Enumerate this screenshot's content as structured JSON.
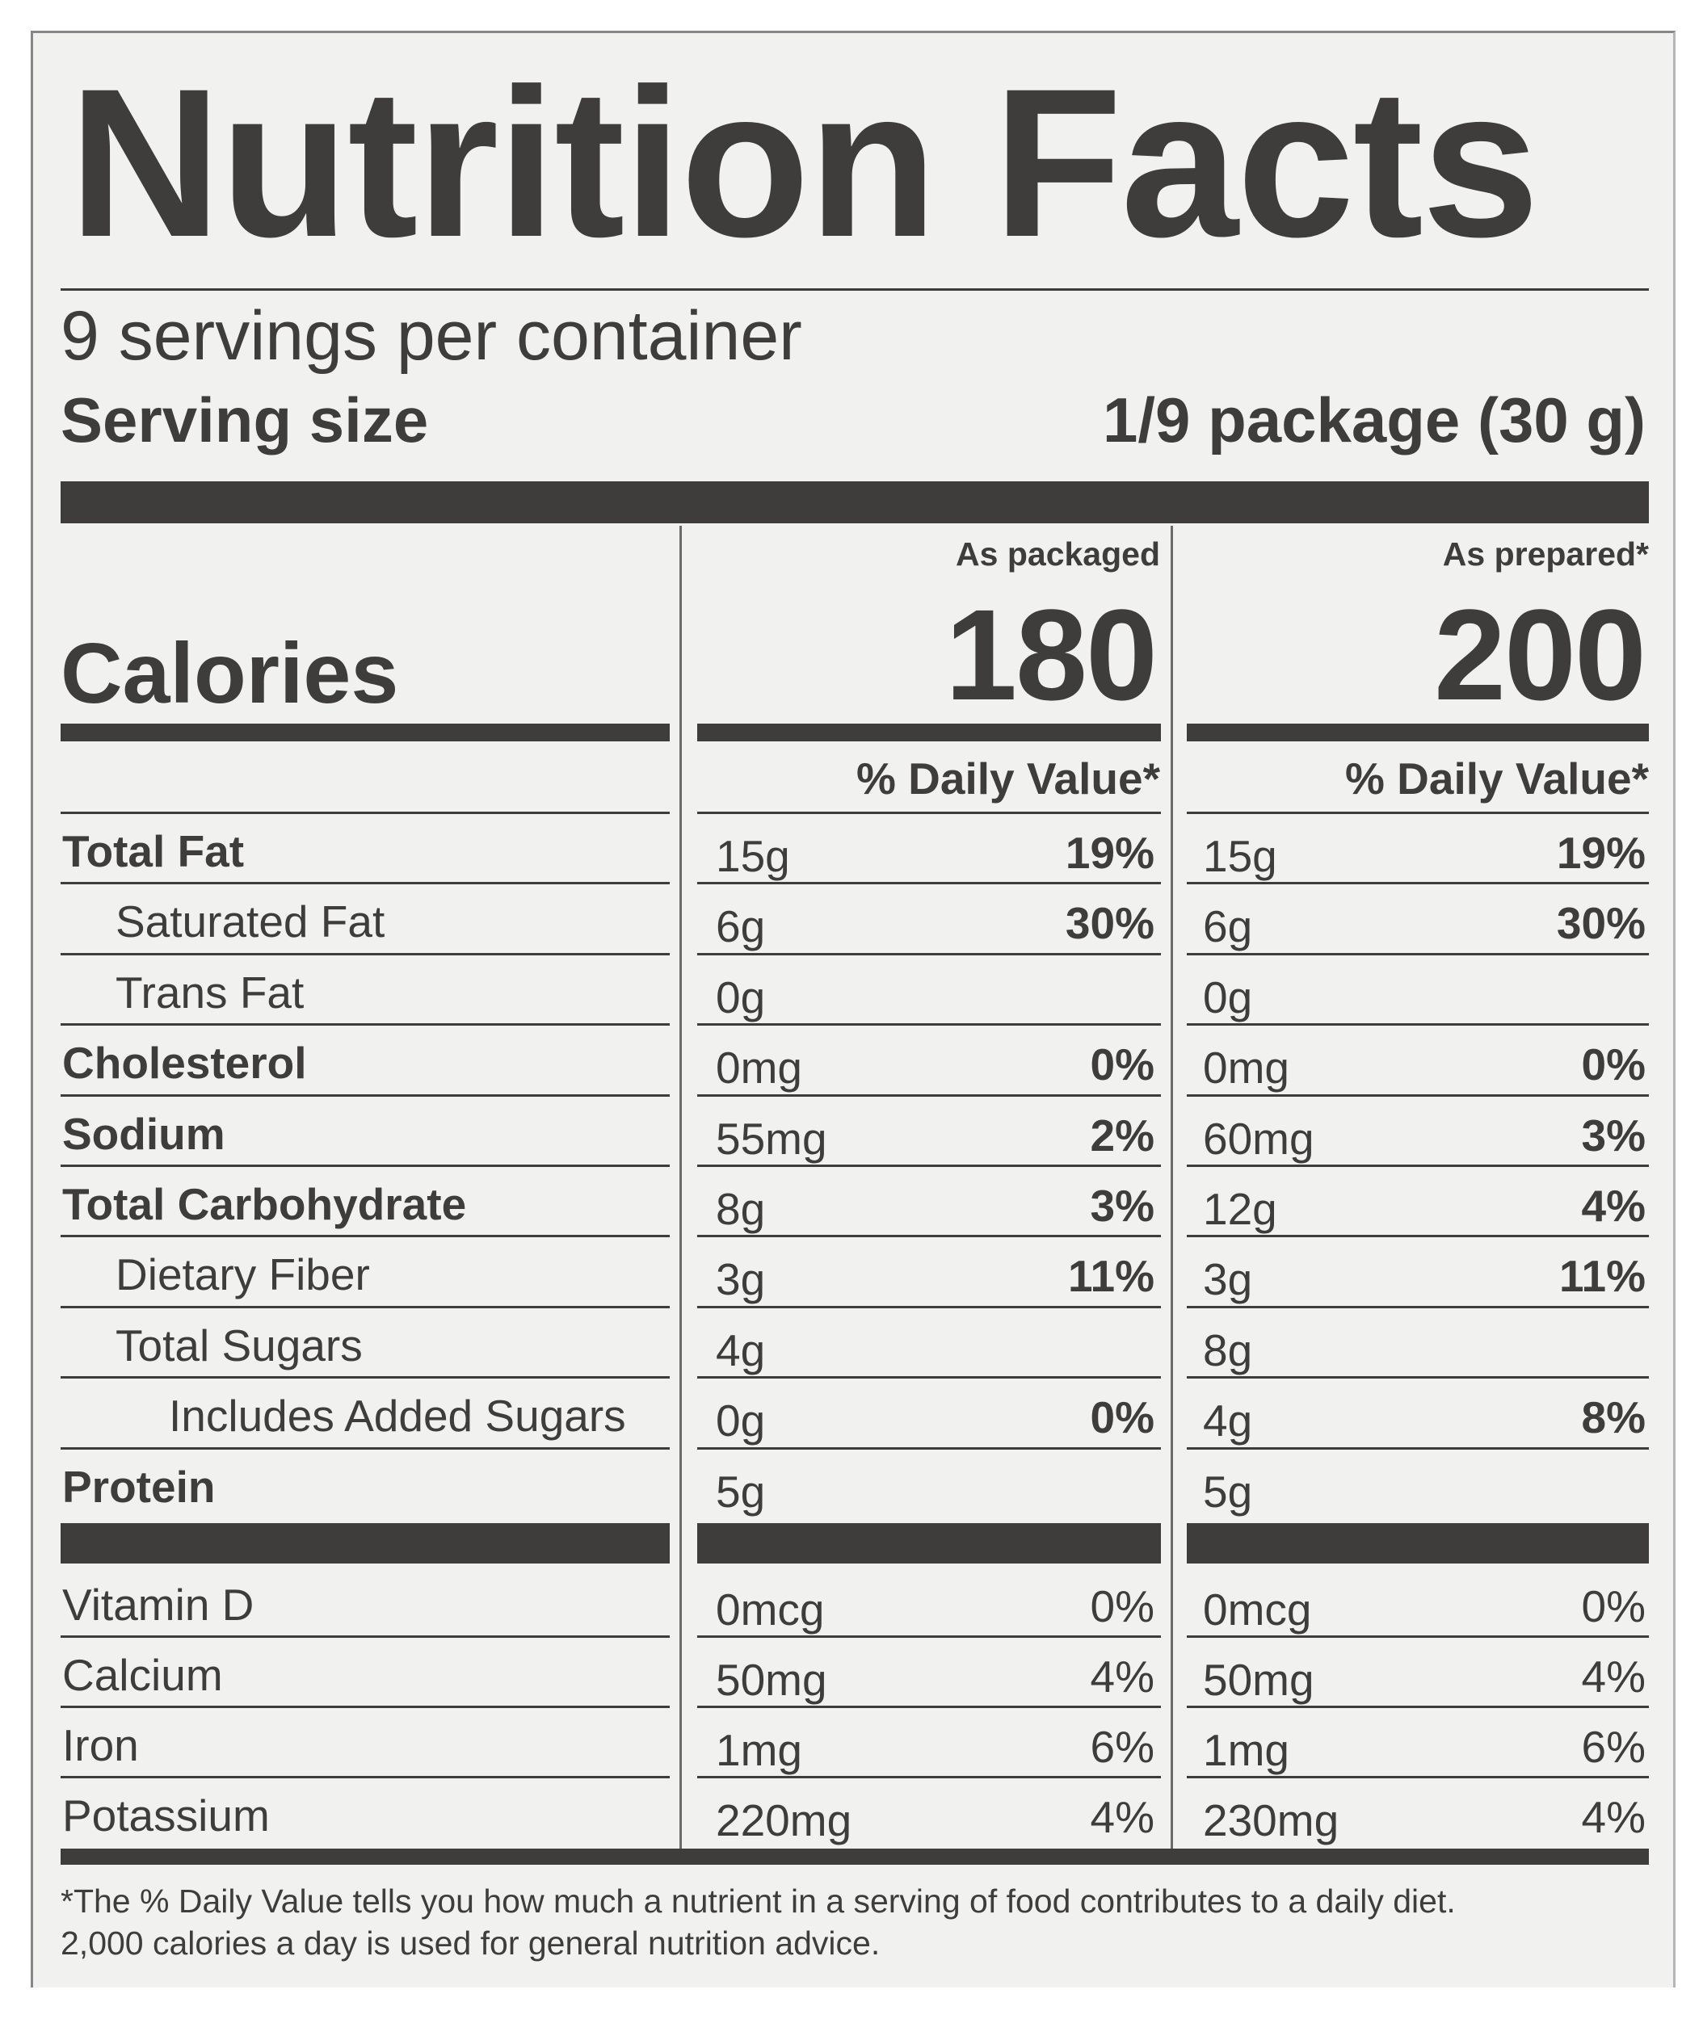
{
  "title": "Nutrition Facts",
  "servings_per_container": "9 servings per container",
  "serving_size": {
    "label": "Serving size",
    "value": "1/9 package (30 g)"
  },
  "calories": {
    "label": "Calories",
    "packaged": "180",
    "prepared": "200"
  },
  "column_headers": {
    "packaged": "As packaged",
    "prepared": "As prepared*"
  },
  "daily_value_header": "% Daily Value*",
  "nutrients": [
    {
      "name": "Total Fat",
      "bold": true,
      "indent": 0,
      "pk_amt": "15g",
      "pk_dv": "19%",
      "pr_amt": "15g",
      "pr_dv": "19%"
    },
    {
      "name": "Saturated Fat",
      "bold": false,
      "indent": 1,
      "pk_amt": "6g",
      "pk_dv": "30%",
      "pr_amt": "6g",
      "pr_dv": "30%"
    },
    {
      "name": "Trans Fat",
      "bold": false,
      "indent": 1,
      "pk_amt": "0g",
      "pk_dv": "",
      "pr_amt": "0g",
      "pr_dv": ""
    },
    {
      "name": "Cholesterol",
      "bold": true,
      "indent": 0,
      "pk_amt": "0mg",
      "pk_dv": "0%",
      "pr_amt": "0mg",
      "pr_dv": "0%"
    },
    {
      "name": "Sodium",
      "bold": true,
      "indent": 0,
      "pk_amt": "55mg",
      "pk_dv": "2%",
      "pr_amt": "60mg",
      "pr_dv": "3%"
    },
    {
      "name": "Total Carbohydrate",
      "bold": true,
      "indent": 0,
      "pk_amt": "8g",
      "pk_dv": "3%",
      "pr_amt": "12g",
      "pr_dv": "4%"
    },
    {
      "name": "Dietary Fiber",
      "bold": false,
      "indent": 1,
      "pk_amt": "3g",
      "pk_dv": "11%",
      "pr_amt": "3g",
      "pr_dv": "11%"
    },
    {
      "name": "Total Sugars",
      "bold": false,
      "indent": 1,
      "pk_amt": "4g",
      "pk_dv": "",
      "pr_amt": "8g",
      "pr_dv": ""
    },
    {
      "name": "Includes Added Sugars",
      "bold": false,
      "indent": 2,
      "pk_amt": "0g",
      "pk_dv": "0%",
      "pr_amt": "4g",
      "pr_dv": "8%"
    },
    {
      "name": "Protein",
      "bold": true,
      "indent": 0,
      "pk_amt": "5g",
      "pk_dv": "",
      "pr_amt": "5g",
      "pr_dv": ""
    }
  ],
  "vitamins": [
    {
      "name": "Vitamin D",
      "pk_amt": "0mcg",
      "pk_dv": "0%",
      "pr_amt": "0mcg",
      "pr_dv": "0%"
    },
    {
      "name": "Calcium",
      "pk_amt": "50mg",
      "pk_dv": "4%",
      "pr_amt": "50mg",
      "pr_dv": "4%"
    },
    {
      "name": "Iron",
      "pk_amt": "1mg",
      "pk_dv": "6%",
      "pr_amt": "1mg",
      "pr_dv": "6%"
    },
    {
      "name": "Potassium",
      "pk_amt": "220mg",
      "pk_dv": "4%",
      "pr_amt": "230mg",
      "pr_dv": "4%"
    }
  ],
  "footnote": {
    "line1": "*The % Daily Value tells you how much a nutrient in a serving of food contributes to a daily diet.",
    "line2": "2,000 calories a day is used for general nutrition advice."
  }
}
